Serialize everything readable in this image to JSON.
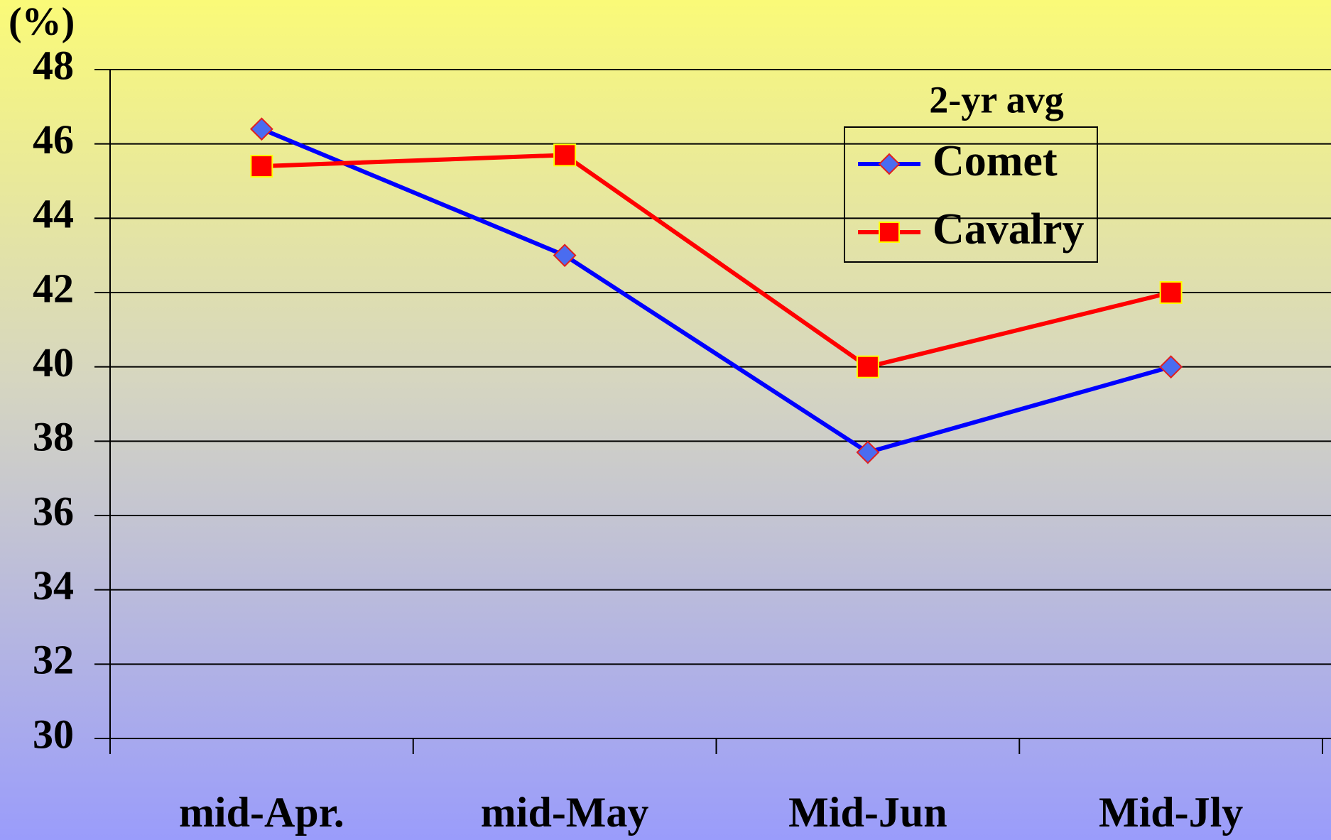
{
  "chart_data": {
    "type": "line",
    "y_label": "(%)",
    "legend_title": "2-yr avg",
    "categories": [
      "mid-Apr.",
      "mid-May",
      "Mid-Jun",
      "Mid-Jly"
    ],
    "series": [
      {
        "name": "Comet",
        "color": "#0000ff",
        "marker": "diamond",
        "values": [
          46.4,
          43,
          37.7,
          40
        ]
      },
      {
        "name": "Cavalry",
        "color": "#ff0000",
        "marker": "square",
        "values": [
          45.4,
          45.7,
          40,
          42
        ]
      }
    ],
    "ylim": [
      30,
      48
    ],
    "yticks": [
      30,
      32,
      34,
      36,
      38,
      40,
      42,
      44,
      46,
      48
    ],
    "grid": true
  }
}
